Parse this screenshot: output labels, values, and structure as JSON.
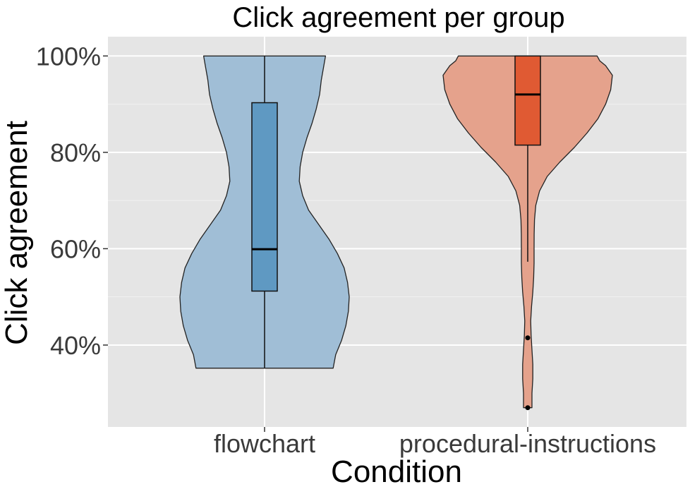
{
  "chart_data": {
    "type": "violin",
    "title": "Click agreement per group",
    "xlabel": "Condition",
    "ylabel": "Click agreement",
    "categories": [
      "flowchart",
      "procedural-instructions"
    ],
    "ylim": [
      23,
      104
    ],
    "yticks": [
      40,
      60,
      80,
      100
    ],
    "ytick_labels": [
      "40%",
      "60%",
      "80%",
      "100%"
    ],
    "grid": true,
    "groups": [
      {
        "category": "flowchart",
        "violin_color": "#a0bed6",
        "box_color": "#5f99c2",
        "min": 35.2,
        "q1": 51.2,
        "median": 59.9,
        "q3": 90.3,
        "max": 100,
        "outliers": [],
        "density": [
          [
            35.2,
            0.81
          ],
          [
            38,
            0.84
          ],
          [
            41,
            0.91
          ],
          [
            44,
            0.96
          ],
          [
            47,
            0.99
          ],
          [
            50,
            1.0
          ],
          [
            53,
            0.98
          ],
          [
            56,
            0.94
          ],
          [
            59,
            0.86
          ],
          [
            62,
            0.76
          ],
          [
            65,
            0.64
          ],
          [
            68,
            0.52
          ],
          [
            71,
            0.45
          ],
          [
            74,
            0.41
          ],
          [
            77,
            0.42
          ],
          [
            80,
            0.45
          ],
          [
            83,
            0.5
          ],
          [
            86,
            0.56
          ],
          [
            89,
            0.61
          ],
          [
            92,
            0.65
          ],
          [
            95,
            0.67
          ],
          [
            98,
            0.7
          ],
          [
            100,
            0.72
          ]
        ]
      },
      {
        "category": "procedural-instructions",
        "violin_color": "#e5a28c",
        "box_color": "#e05a33",
        "min": 57.3,
        "q1": 81.5,
        "median": 92.0,
        "q3": 100,
        "max": 100,
        "outliers": [
          41.5,
          27.0
        ],
        "density": [
          [
            27,
            0.05
          ],
          [
            30,
            0.05
          ],
          [
            33,
            0.06
          ],
          [
            36,
            0.06
          ],
          [
            39,
            0.05
          ],
          [
            42,
            0.04
          ],
          [
            45,
            0.035
          ],
          [
            48,
            0.045
          ],
          [
            51,
            0.06
          ],
          [
            54,
            0.07
          ],
          [
            57,
            0.075
          ],
          [
            60,
            0.075
          ],
          [
            63,
            0.076
          ],
          [
            66,
            0.08
          ],
          [
            69,
            0.095
          ],
          [
            72,
            0.14
          ],
          [
            75,
            0.23
          ],
          [
            78,
            0.38
          ],
          [
            81,
            0.55
          ],
          [
            84,
            0.7
          ],
          [
            87,
            0.83
          ],
          [
            90,
            0.92
          ],
          [
            93,
            0.98
          ],
          [
            96,
            1.0
          ],
          [
            98,
            0.92
          ],
          [
            99,
            0.85
          ],
          [
            100,
            0.82
          ]
        ]
      }
    ]
  }
}
